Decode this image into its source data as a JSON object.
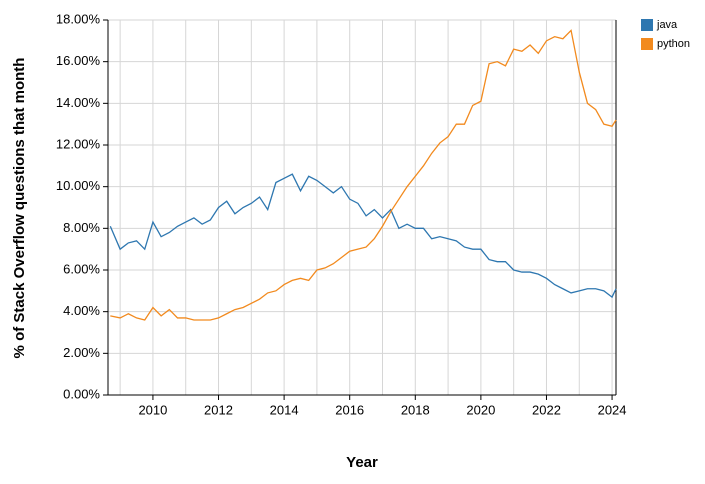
{
  "chart_data": {
    "type": "line",
    "xlabel": "Year",
    "ylabel": "% of Stack Overflow questions that month",
    "x": [
      2008.7,
      2009.0,
      2009.25,
      2009.5,
      2009.75,
      2010.0,
      2010.25,
      2010.5,
      2010.75,
      2011.0,
      2011.25,
      2011.5,
      2011.75,
      2012.0,
      2012.25,
      2012.5,
      2012.75,
      2013.0,
      2013.25,
      2013.5,
      2013.75,
      2014.0,
      2014.25,
      2014.5,
      2014.75,
      2015.0,
      2015.25,
      2015.5,
      2015.75,
      2016.0,
      2016.25,
      2016.5,
      2016.75,
      2017.0,
      2017.25,
      2017.5,
      2017.75,
      2018.0,
      2018.25,
      2018.5,
      2018.75,
      2019.0,
      2019.25,
      2019.5,
      2019.75,
      2020.0,
      2020.25,
      2020.5,
      2020.75,
      2021.0,
      2021.25,
      2021.5,
      2021.75,
      2022.0,
      2022.25,
      2022.5,
      2022.75,
      2023.0,
      2023.25,
      2023.5,
      2023.75,
      2024.0,
      2024.12
    ],
    "series": [
      {
        "name": "java",
        "color": "#2e77b0",
        "values": [
          8.1,
          7.0,
          7.3,
          7.4,
          7.0,
          8.3,
          7.6,
          7.8,
          8.1,
          8.3,
          8.5,
          8.2,
          8.4,
          9.0,
          9.3,
          8.7,
          9.0,
          9.2,
          9.5,
          8.9,
          10.2,
          10.4,
          10.6,
          9.8,
          10.5,
          10.3,
          10.0,
          9.7,
          10.0,
          9.4,
          9.2,
          8.6,
          8.9,
          8.5,
          8.9,
          8.0,
          8.2,
          8.0,
          8.0,
          7.5,
          7.6,
          7.5,
          7.4,
          7.1,
          7.0,
          7.0,
          6.5,
          6.4,
          6.4,
          6.0,
          5.9,
          5.9,
          5.8,
          5.6,
          5.3,
          5.1,
          4.9,
          5.0,
          5.1,
          5.1,
          5.0,
          4.7,
          5.1
        ]
      },
      {
        "name": "python",
        "color": "#f28a1e",
        "values": [
          3.8,
          3.7,
          3.9,
          3.7,
          3.6,
          4.2,
          3.8,
          4.1,
          3.7,
          3.7,
          3.6,
          3.6,
          3.6,
          3.7,
          3.9,
          4.1,
          4.2,
          4.4,
          4.6,
          4.9,
          5.0,
          5.3,
          5.5,
          5.6,
          5.5,
          6.0,
          6.1,
          6.3,
          6.6,
          6.9,
          7.0,
          7.1,
          7.5,
          8.1,
          8.8,
          9.4,
          10.0,
          10.5,
          11.0,
          11.6,
          12.1,
          12.4,
          13.0,
          13.0,
          13.9,
          14.1,
          15.9,
          16.0,
          15.8,
          16.6,
          16.5,
          16.8,
          16.4,
          17.0,
          17.2,
          17.1,
          17.5,
          15.5,
          14.0,
          13.7,
          13.0,
          12.9,
          13.2
        ]
      }
    ],
    "xlim": [
      2008.63,
      2024.12
    ],
    "xticks": [
      2010,
      2012,
      2014,
      2016,
      2018,
      2020,
      2022,
      2024
    ],
    "x_minor_grid": [
      2009,
      2011,
      2013,
      2015,
      2017,
      2019,
      2021,
      2023
    ],
    "ylim": [
      0,
      18
    ],
    "yticks": [
      {
        "value": 0,
        "label": "0.00%"
      },
      {
        "value": 2,
        "label": "2.00%"
      },
      {
        "value": 4,
        "label": "4.00%"
      },
      {
        "value": 6,
        "label": "6.00%"
      },
      {
        "value": 8,
        "label": "8.00%"
      },
      {
        "value": 10,
        "label": "10.00%"
      },
      {
        "value": 12,
        "label": "12.00%"
      },
      {
        "value": 14,
        "label": "14.00%"
      },
      {
        "value": 16,
        "label": "16.00%"
      },
      {
        "value": 18,
        "label": "18.00%"
      }
    ],
    "grid": true,
    "legend": "right"
  }
}
